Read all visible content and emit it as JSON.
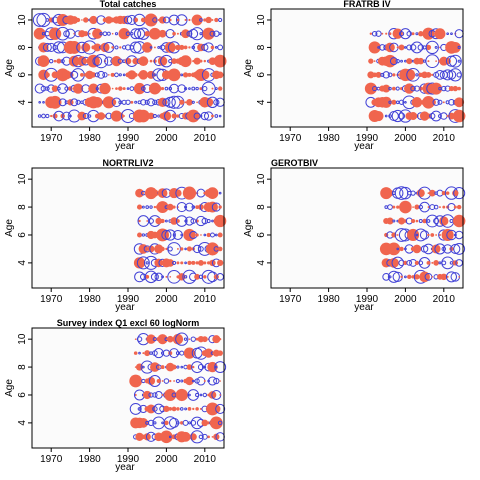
{
  "colors": {
    "positive": "#4141d6",
    "negative": "#f0654e",
    "axis": "#000000",
    "panel_bg": "#fbfbfb"
  },
  "chart_data": [
    {
      "type": "bubble-residual",
      "title": "Total catches",
      "xlabel": "year",
      "ylabel": "Age",
      "xlim": [
        1965,
        2015
      ],
      "ylim": [
        2.2,
        10.8
      ],
      "xticks": [
        1970,
        1980,
        1990,
        2000,
        2010
      ],
      "yticks": [
        4,
        6,
        8,
        10
      ],
      "years": [
        1967,
        2014
      ],
      "ages": [
        3,
        10
      ]
    },
    {
      "type": "bubble-residual",
      "title": "FRATRB IV",
      "xlabel": "year",
      "ylabel": "Age",
      "xlim": [
        1965,
        2015
      ],
      "ylim": [
        2.2,
        10.8
      ],
      "xticks": [
        1970,
        1980,
        1990,
        2000,
        2010
      ],
      "yticks": [
        4,
        6,
        8,
        10
      ],
      "years": [
        1991,
        2014
      ],
      "ages": [
        3,
        9
      ]
    },
    {
      "type": "bubble-residual",
      "title": "NORTRLIV2",
      "xlabel": "year",
      "ylabel": "Age",
      "xlim": [
        1965,
        2015
      ],
      "ylim": [
        2.2,
        10.8
      ],
      "xticks": [
        1970,
        1980,
        1990,
        2000,
        2010
      ],
      "yticks": [
        4,
        6,
        8,
        10
      ],
      "years": [
        1993,
        2014
      ],
      "ages": [
        3,
        9
      ]
    },
    {
      "type": "bubble-residual",
      "title": "GEROTBIV",
      "xlabel": "year",
      "ylabel": "Age",
      "xlim": [
        1965,
        2015
      ],
      "ylim": [
        2.2,
        10.8
      ],
      "xticks": [
        1970,
        1980,
        1990,
        2000,
        2010
      ],
      "yticks": [
        4,
        6,
        8,
        10
      ],
      "years": [
        1995,
        2014
      ],
      "ages": [
        3,
        9
      ]
    },
    {
      "type": "bubble-residual",
      "title": "Survey index Q1 excl 60 logNorm",
      "xlabel": "year",
      "ylabel": "Age",
      "xlim": [
        1965,
        2015
      ],
      "ylim": [
        2.2,
        10.8
      ],
      "xticks": [
        1970,
        1980,
        1990,
        2000,
        2010
      ],
      "yticks": [
        4,
        6,
        8,
        10
      ],
      "years": [
        1992,
        2014
      ],
      "ages": [
        3,
        10
      ]
    }
  ]
}
